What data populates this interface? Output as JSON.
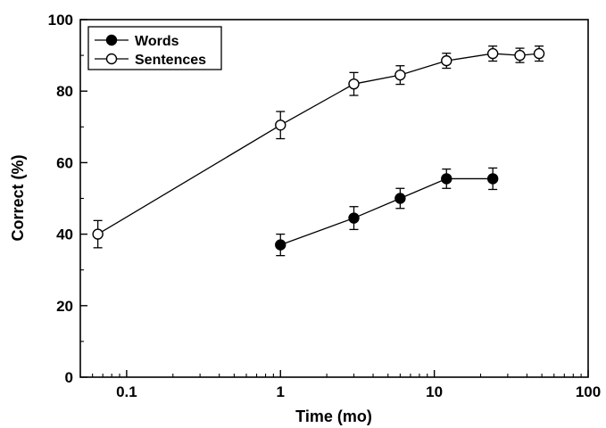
{
  "chart_data": {
    "type": "line",
    "xlabel": "Time (mo)",
    "ylabel": "Correct (%)",
    "xscale": "log",
    "xlim": [
      0.05,
      100
    ],
    "ylim": [
      0,
      100
    ],
    "x_ticks": [
      0.1,
      1,
      10,
      100
    ],
    "x_tick_labels": [
      "0.1",
      "1",
      "10",
      "100"
    ],
    "y_ticks": [
      0,
      20,
      40,
      60,
      80,
      100
    ],
    "y_tick_labels": [
      "0",
      "20",
      "40",
      "60",
      "80",
      "100"
    ],
    "grid": false,
    "legend_position": "top-left",
    "series": [
      {
        "name": "Words",
        "marker": "filled-circle",
        "color": "#000000",
        "x": [
          1,
          3,
          6,
          12,
          24
        ],
        "y": [
          37,
          44.5,
          50,
          55.5,
          55.5
        ],
        "error": [
          3,
          3.2,
          2.8,
          2.7,
          3
        ]
      },
      {
        "name": "Sentences",
        "marker": "open-circle",
        "color": "#000000",
        "x": [
          0.065,
          1,
          3,
          6,
          12,
          24,
          36,
          48
        ],
        "y": [
          40,
          70.5,
          82,
          84.5,
          88.5,
          90.5,
          90,
          90.5
        ],
        "error": [
          3.8,
          3.8,
          3.2,
          2.6,
          2.1,
          2.1,
          2,
          2.1
        ]
      }
    ]
  }
}
